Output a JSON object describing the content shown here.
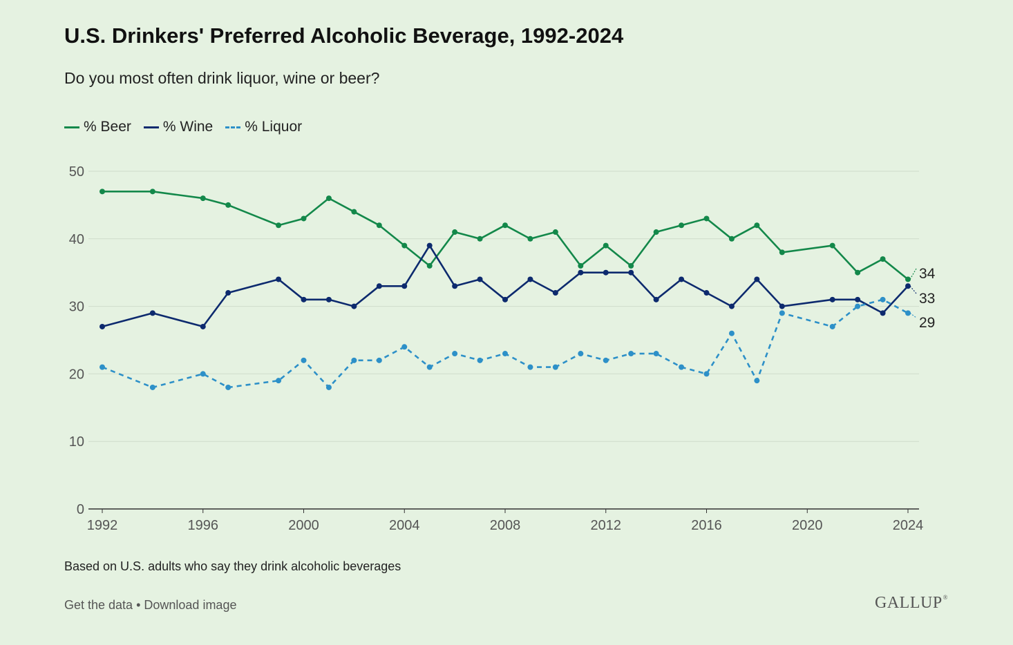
{
  "title": "U.S. Drinkers' Preferred Alcoholic Beverage, 1992-2024",
  "subtitle": "Do you most often drink liquor, wine or beer?",
  "note": "Based on U.S. adults who say they drink alcoholic beverages",
  "footer": {
    "get_data": "Get the data",
    "separator": "•",
    "download": "Download image"
  },
  "brand": "GALLUP",
  "colors": {
    "beer": "#13884a",
    "wine": "#0d2a6e",
    "liquor": "#2d90c8",
    "grid": "#cfdccb",
    "axis": "#333333",
    "tick_text": "#555555"
  },
  "chart_data": {
    "type": "line",
    "title": "U.S. Drinkers' Preferred Alcoholic Beverage, 1992-2024",
    "subtitle": "Do you most often drink liquor, wine or beer?",
    "xlabel": "",
    "ylabel": "",
    "xlim": [
      1992,
      2024
    ],
    "ylim": [
      0,
      50
    ],
    "x_ticks": [
      1992,
      1996,
      2000,
      2004,
      2008,
      2012,
      2016,
      2020,
      2024
    ],
    "y_ticks": [
      0,
      10,
      20,
      30,
      40,
      50
    ],
    "grid": true,
    "legend_position": "top-left",
    "series": [
      {
        "name": "% Beer",
        "color": "#13884a",
        "style": "solid",
        "end_label": "34",
        "points": [
          [
            1992,
            47
          ],
          [
            1994,
            47
          ],
          [
            1996,
            46
          ],
          [
            1997,
            45
          ],
          [
            1999,
            42
          ],
          [
            2000,
            43
          ],
          [
            2001,
            46
          ],
          [
            2002,
            44
          ],
          [
            2003,
            42
          ],
          [
            2004,
            39
          ],
          [
            2005,
            36
          ],
          [
            2006,
            41
          ],
          [
            2007,
            40
          ],
          [
            2008,
            42
          ],
          [
            2009,
            40
          ],
          [
            2010,
            41
          ],
          [
            2011,
            36
          ],
          [
            2012,
            39
          ],
          [
            2013,
            36
          ],
          [
            2014,
            41
          ],
          [
            2015,
            42
          ],
          [
            2016,
            43
          ],
          [
            2017,
            40
          ],
          [
            2018,
            42
          ],
          [
            2019,
            38
          ],
          [
            2021,
            39
          ],
          [
            2022,
            35
          ],
          [
            2023,
            37
          ],
          [
            2024,
            34
          ]
        ]
      },
      {
        "name": "% Wine",
        "color": "#0d2a6e",
        "style": "solid",
        "end_label": "33",
        "points": [
          [
            1992,
            27
          ],
          [
            1994,
            29
          ],
          [
            1996,
            27
          ],
          [
            1997,
            32
          ],
          [
            1999,
            34
          ],
          [
            2000,
            31
          ],
          [
            2001,
            31
          ],
          [
            2002,
            30
          ],
          [
            2003,
            33
          ],
          [
            2004,
            33
          ],
          [
            2005,
            39
          ],
          [
            2006,
            33
          ],
          [
            2007,
            34
          ],
          [
            2008,
            31
          ],
          [
            2009,
            34
          ],
          [
            2010,
            32
          ],
          [
            2011,
            35
          ],
          [
            2012,
            35
          ],
          [
            2013,
            35
          ],
          [
            2014,
            31
          ],
          [
            2015,
            34
          ],
          [
            2016,
            32
          ],
          [
            2017,
            30
          ],
          [
            2018,
            34
          ],
          [
            2019,
            30
          ],
          [
            2021,
            31
          ],
          [
            2022,
            31
          ],
          [
            2023,
            29
          ],
          [
            2024,
            33
          ]
        ]
      },
      {
        "name": "% Liquor",
        "color": "#2d90c8",
        "style": "dashed",
        "end_label": "29",
        "points": [
          [
            1992,
            21
          ],
          [
            1994,
            18
          ],
          [
            1996,
            20
          ],
          [
            1997,
            18
          ],
          [
            1999,
            19
          ],
          [
            2000,
            22
          ],
          [
            2001,
            18
          ],
          [
            2002,
            22
          ],
          [
            2003,
            22
          ],
          [
            2004,
            24
          ],
          [
            2005,
            21
          ],
          [
            2006,
            23
          ],
          [
            2007,
            22
          ],
          [
            2008,
            23
          ],
          [
            2009,
            21
          ],
          [
            2010,
            21
          ],
          [
            2011,
            23
          ],
          [
            2012,
            22
          ],
          [
            2013,
            23
          ],
          [
            2014,
            23
          ],
          [
            2015,
            21
          ],
          [
            2016,
            20
          ],
          [
            2017,
            26
          ],
          [
            2018,
            19
          ],
          [
            2019,
            29
          ],
          [
            2021,
            27
          ],
          [
            2022,
            30
          ],
          [
            2023,
            31
          ],
          [
            2024,
            29
          ]
        ]
      }
    ]
  }
}
